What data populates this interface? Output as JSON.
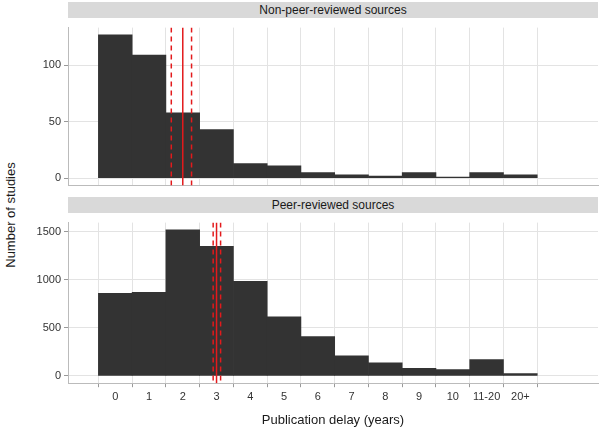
{
  "chart_data": [
    {
      "type": "bar",
      "title": "Non-peer-reviewed sources",
      "categories": [
        "0",
        "1",
        "2",
        "3",
        "4",
        "5",
        "6",
        "7",
        "8",
        "9",
        "10",
        "11-20",
        "20+"
      ],
      "values": [
        127,
        109,
        58,
        43,
        13,
        11,
        5,
        3,
        2,
        5,
        1,
        5,
        3
      ],
      "color": "#333333",
      "xlim": [
        -1.4,
        14.3
      ],
      "ylim": [
        -6.35,
        133.35
      ],
      "yticks": [
        0,
        50,
        100
      ],
      "grid": true,
      "tick_labels": "y",
      "reference_lines": [
        {
          "x": 1.66,
          "line_style": "dashed",
          "color": "#e31a1c"
        },
        {
          "x": 2.0,
          "line_style": "solid",
          "color": "#e31a1c"
        },
        {
          "x": 2.26,
          "line_style": "dashed",
          "color": "#e31a1c"
        }
      ]
    },
    {
      "type": "bar",
      "title": "Peer-reviewed sources",
      "xlabel": "Publication delay (years)",
      "ylabel": "Number of studies",
      "categories": [
        "0",
        "1",
        "2",
        "3",
        "4",
        "5",
        "6",
        "7",
        "8",
        "9",
        "10",
        "11-20",
        "20+"
      ],
      "values": [
        860,
        870,
        1520,
        1350,
        985,
        615,
        410,
        210,
        135,
        80,
        65,
        170,
        25
      ],
      "color": "#333333",
      "xlim": [
        -1.4,
        14.3
      ],
      "ylim": [
        -76,
        1596
      ],
      "yticks": [
        0,
        500,
        1000,
        1500
      ],
      "grid": true,
      "reference_lines": [
        {
          "x": 2.9,
          "line_style": "dashed",
          "color": "#e31a1c"
        },
        {
          "x": 3.0,
          "line_style": "solid",
          "color": "#e31a1c"
        },
        {
          "x": 3.12,
          "line_style": "dashed",
          "color": "#e31a1c"
        }
      ]
    }
  ]
}
